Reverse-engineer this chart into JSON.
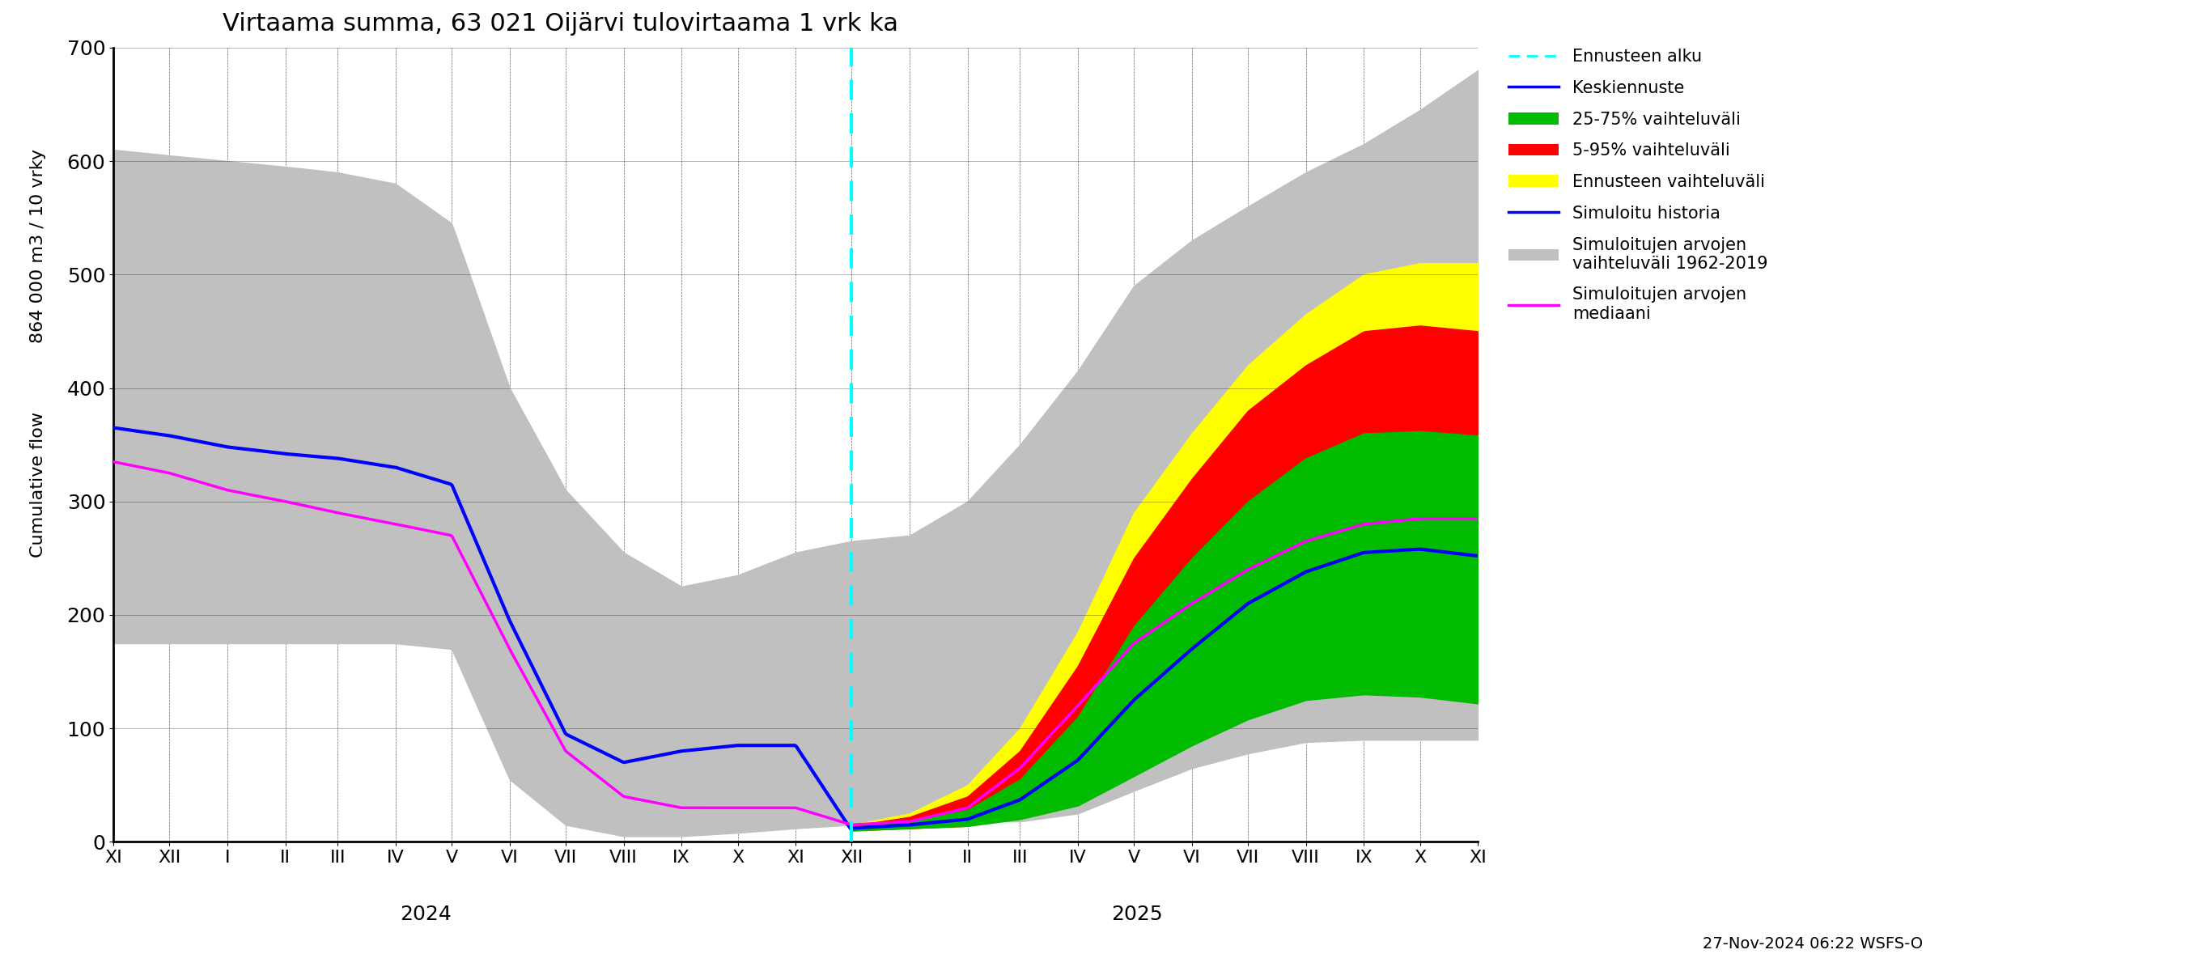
{
  "title": "Virtaama summa, 63 021 Oijärvi tulovirtaama 1 vrk ka",
  "ylabel_top": "864 000 m3 / 10 vrky",
  "ylabel_bottom": "Cumulative flow",
  "ylim": [
    0,
    700
  ],
  "yticks": [
    0,
    100,
    200,
    300,
    400,
    500,
    600,
    700
  ],
  "footnote": "27-Nov-2024 06:22 WSFS-O",
  "colors": {
    "hist_band": "#c0c0c0",
    "yellow_band": "#ffff00",
    "red_band": "#ff0000",
    "green_band": "#00bb00",
    "blue_line": "#0000ff",
    "magenta_line": "#ff00ff",
    "cyan_dashed": "#00ffff"
  },
  "legend_entries": [
    {
      "label": "Ennusteen alku",
      "color": "#00ffff",
      "linestyle": "dashed",
      "linewidth": 2
    },
    {
      "label": "Keskiennuste",
      "color": "#0000ff",
      "linestyle": "solid",
      "linewidth": 2.5
    },
    {
      "label": "25-75% vaihteluväli",
      "color": "#00bb00",
      "linestyle": "solid",
      "linewidth": 8
    },
    {
      "label": "5-95% vaihteluväli",
      "color": "#ff0000",
      "linestyle": "solid",
      "linewidth": 8
    },
    {
      "label": "Ennusteen vaihteluväli",
      "color": "#ffff00",
      "linestyle": "solid",
      "linewidth": 8
    },
    {
      "label": "Simuloitu historia",
      "color": "#0000ff",
      "linestyle": "solid",
      "linewidth": 2.5
    },
    {
      "label": "Simuloitujen arvojen\nvaihteluväli 1962-2019",
      "color": "#c0c0c0",
      "linestyle": "solid",
      "linewidth": 8
    },
    {
      "label": "Simuloitujen arvojen\nmediaani",
      "color": "#ff00ff",
      "linestyle": "solid",
      "linewidth": 2.5
    }
  ]
}
